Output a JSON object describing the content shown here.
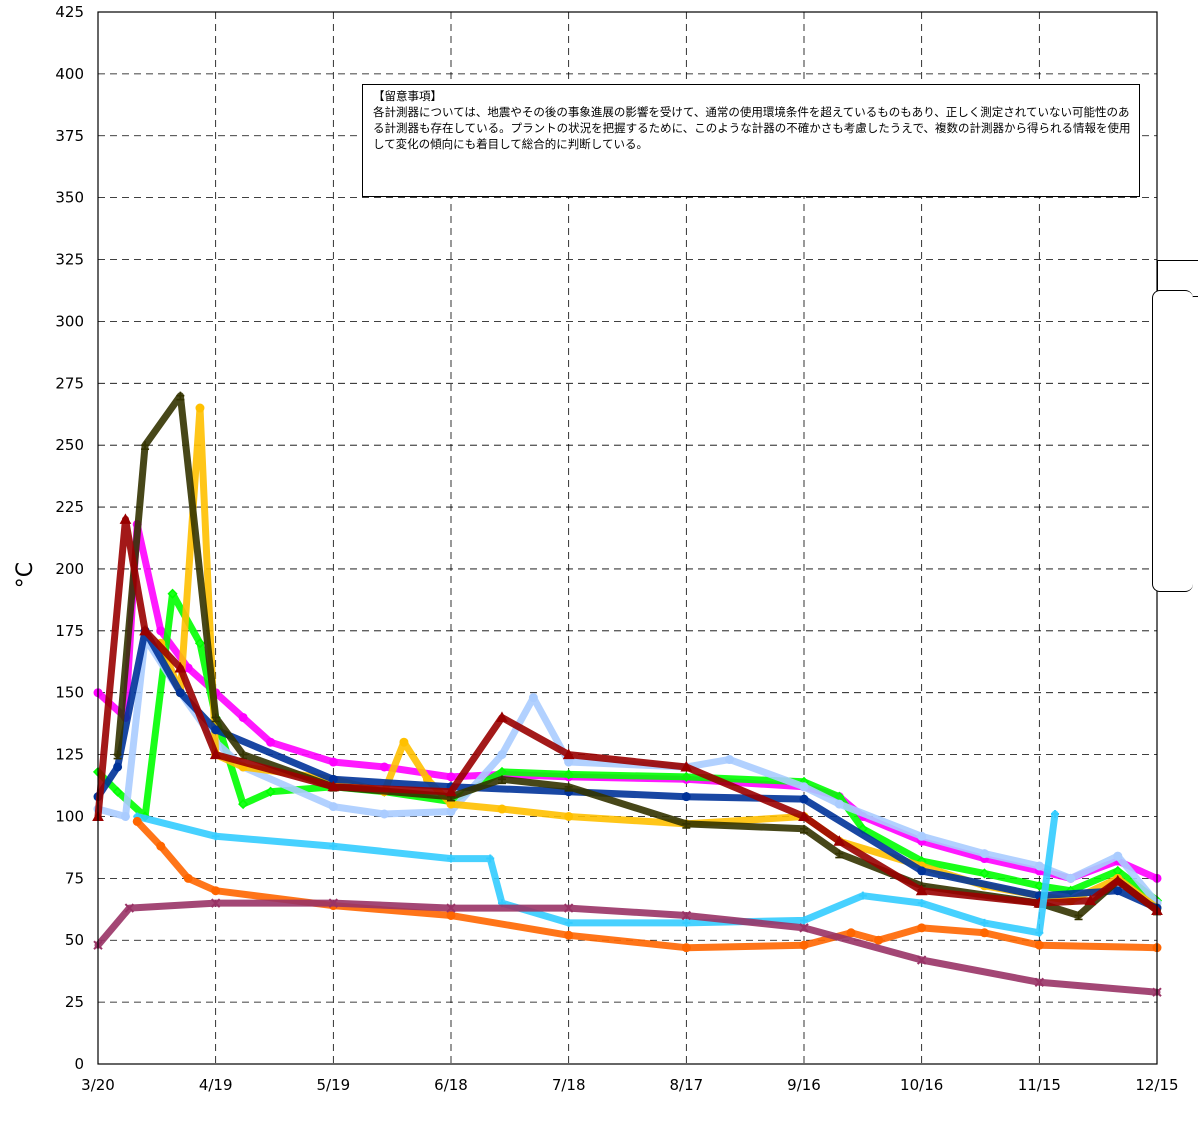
{
  "chart_data": {
    "type": "line",
    "title": "",
    "xlabel": "",
    "ylabel": "°C",
    "ylim": [
      0,
      425
    ],
    "yticks": [
      0,
      25,
      50,
      75,
      100,
      125,
      150,
      175,
      200,
      225,
      250,
      275,
      300,
      325,
      350,
      375,
      400,
      425
    ],
    "xlim": [
      "2011-03-20",
      "2011-12-15"
    ],
    "xticks": [
      "3/20",
      "4/19",
      "5/19",
      "6/18",
      "7/18",
      "8/17",
      "9/16",
      "10/16",
      "11/15",
      "12/15"
    ],
    "grid": true,
    "annotation": {
      "title": "【留意事項】",
      "text": "各計測器については、地震やその後の事象進展の影響を受けて、通常の使用環境条件を超えているものもあり、正しく測定されていない可能性のある計測器も存在している。プラントの状況を把握するために、このような計器の不確かさも考慮したうえで、複数の計測器から得られる情報を使用して変化の傾向にも着目して総合的に判断している。"
    },
    "series": [
      {
        "color": "#ff00ff",
        "marker": "circle",
        "x": [
          "2011-03-20",
          "2011-03-27",
          "2011-03-30",
          "2011-04-05",
          "2011-04-12",
          "2011-04-19",
          "2011-04-26",
          "2011-05-03",
          "2011-05-19",
          "2011-06-01",
          "2011-06-18",
          "2011-07-01",
          "2011-07-18",
          "2011-08-17",
          "2011-09-16",
          "2011-09-25",
          "2011-10-01",
          "2011-10-16",
          "2011-11-01",
          "2011-11-15",
          "2011-11-23",
          "2011-12-05",
          "2011-12-15"
        ],
        "y": [
          150,
          140,
          218,
          175,
          160,
          150,
          140,
          130,
          122,
          120,
          116,
          117,
          116,
          115,
          112,
          108,
          100,
          90,
          83,
          78,
          75,
          82,
          75
        ]
      },
      {
        "color": "#00ff00",
        "marker": "diamond-open",
        "x": [
          "2011-03-20",
          "2011-03-25",
          "2011-04-01",
          "2011-04-08",
          "2011-04-15",
          "2011-04-19",
          "2011-04-26",
          "2011-05-03",
          "2011-05-19",
          "2011-06-01",
          "2011-06-18",
          "2011-07-01",
          "2011-07-18",
          "2011-08-17",
          "2011-09-16",
          "2011-09-25",
          "2011-10-01",
          "2011-10-16",
          "2011-11-01",
          "2011-11-15",
          "2011-11-23",
          "2011-12-05",
          "2011-12-15"
        ],
        "y": [
          118,
          110,
          100,
          190,
          170,
          140,
          105,
          110,
          112,
          110,
          106,
          118,
          117,
          116,
          114,
          108,
          95,
          82,
          77,
          72,
          70,
          78,
          66
        ]
      },
      {
        "color": "#aaccff",
        "marker": "circle",
        "x": [
          "2011-03-20",
          "2011-03-27",
          "2011-04-01",
          "2011-04-10",
          "2011-04-19",
          "2011-04-26",
          "2011-05-19",
          "2011-06-01",
          "2011-06-18",
          "2011-07-01",
          "2011-07-09",
          "2011-07-18",
          "2011-08-17",
          "2011-08-28",
          "2011-09-16",
          "2011-09-25",
          "2011-10-16",
          "2011-11-01",
          "2011-11-15",
          "2011-11-23",
          "2011-12-05",
          "2011-12-15"
        ],
        "y": [
          103,
          100,
          172,
          150,
          130,
          120,
          104,
          101,
          102,
          125,
          148,
          122,
          120,
          123,
          112,
          105,
          92,
          85,
          80,
          75,
          84,
          65
        ]
      },
      {
        "color": "#ffc000",
        "marker": "circle",
        "x": [
          "2011-04-05",
          "2011-04-10",
          "2011-04-15",
          "2011-04-19",
          "2011-04-26",
          "2011-05-19",
          "2011-06-01",
          "2011-06-06",
          "2011-06-12",
          "2011-06-18",
          "2011-07-01",
          "2011-07-18",
          "2011-08-17",
          "2011-09-16",
          "2011-09-25",
          "2011-10-16",
          "2011-11-01",
          "2011-11-15",
          "2011-11-23",
          "2011-12-05",
          "2011-12-15"
        ],
        "y": [
          170,
          150,
          265,
          125,
          120,
          115,
          110,
          130,
          115,
          105,
          103,
          100,
          97,
          100,
          90,
          80,
          72,
          68,
          66,
          75,
          63
        ]
      },
      {
        "color": "#003399",
        "marker": "circle",
        "x": [
          "2011-03-20",
          "2011-03-25",
          "2011-04-01",
          "2011-04-10",
          "2011-04-19",
          "2011-05-19",
          "2011-06-18",
          "2011-07-18",
          "2011-08-17",
          "2011-09-16",
          "2011-10-16",
          "2011-11-15",
          "2011-12-05",
          "2011-12-15"
        ],
        "y": [
          108,
          120,
          175,
          150,
          135,
          115,
          112,
          110,
          108,
          107,
          78,
          68,
          70,
          63
        ]
      },
      {
        "color": "#333300",
        "marker": "dash",
        "x": [
          "2011-03-25",
          "2011-04-01",
          "2011-04-10",
          "2011-04-19",
          "2011-04-26",
          "2011-05-19",
          "2011-06-18",
          "2011-07-01",
          "2011-07-18",
          "2011-08-17",
          "2011-09-16",
          "2011-09-25",
          "2011-10-16",
          "2011-11-15",
          "2011-11-25",
          "2011-12-05",
          "2011-12-15"
        ],
        "y": [
          125,
          250,
          270,
          140,
          125,
          112,
          108,
          115,
          112,
          97,
          95,
          85,
          72,
          65,
          60,
          74,
          62
        ]
      },
      {
        "color": "#990000",
        "marker": "triangle",
        "x": [
          "2011-03-20",
          "2011-03-27",
          "2011-04-01",
          "2011-04-10",
          "2011-04-19",
          "2011-05-19",
          "2011-06-18",
          "2011-07-01",
          "2011-07-18",
          "2011-08-17",
          "2011-09-16",
          "2011-09-25",
          "2011-10-16",
          "2011-11-15",
          "2011-11-28",
          "2011-12-05",
          "2011-12-15"
        ],
        "y": [
          100,
          220,
          175,
          160,
          125,
          112,
          110,
          140,
          125,
          120,
          100,
          90,
          70,
          65,
          66,
          74,
          62
        ]
      },
      {
        "color": "#33ccff",
        "marker": "plus",
        "x": [
          "2011-03-30",
          "2011-04-19",
          "2011-05-19",
          "2011-06-18",
          "2011-06-28",
          "2011-07-01",
          "2011-07-18",
          "2011-08-17",
          "2011-09-16",
          "2011-10-01",
          "2011-10-16",
          "2011-11-01",
          "2011-11-15",
          "2011-11-19"
        ],
        "y": [
          100,
          92,
          88,
          83,
          83,
          65,
          57,
          57,
          58,
          68,
          65,
          57,
          53,
          101
        ]
      },
      {
        "color": "#ff6600",
        "marker": "circle",
        "x": [
          "2011-03-30",
          "2011-04-05",
          "2011-04-12",
          "2011-04-19",
          "2011-05-19",
          "2011-06-18",
          "2011-07-18",
          "2011-08-17",
          "2011-09-16",
          "2011-09-28",
          "2011-10-05",
          "2011-10-16",
          "2011-11-01",
          "2011-11-15",
          "2011-12-15"
        ],
        "y": [
          98,
          88,
          75,
          70,
          64,
          60,
          52,
          47,
          48,
          53,
          50,
          55,
          53,
          48,
          47
        ]
      },
      {
        "color": "#993366",
        "marker": "x",
        "x": [
          "2011-03-20",
          "2011-03-28",
          "2011-04-19",
          "2011-05-19",
          "2011-06-18",
          "2011-07-18",
          "2011-08-17",
          "2011-09-16",
          "2011-10-16",
          "2011-11-15",
          "2011-12-15"
        ],
        "y": [
          48,
          63,
          65,
          65,
          63,
          63,
          60,
          55,
          42,
          33,
          29
        ]
      }
    ]
  }
}
